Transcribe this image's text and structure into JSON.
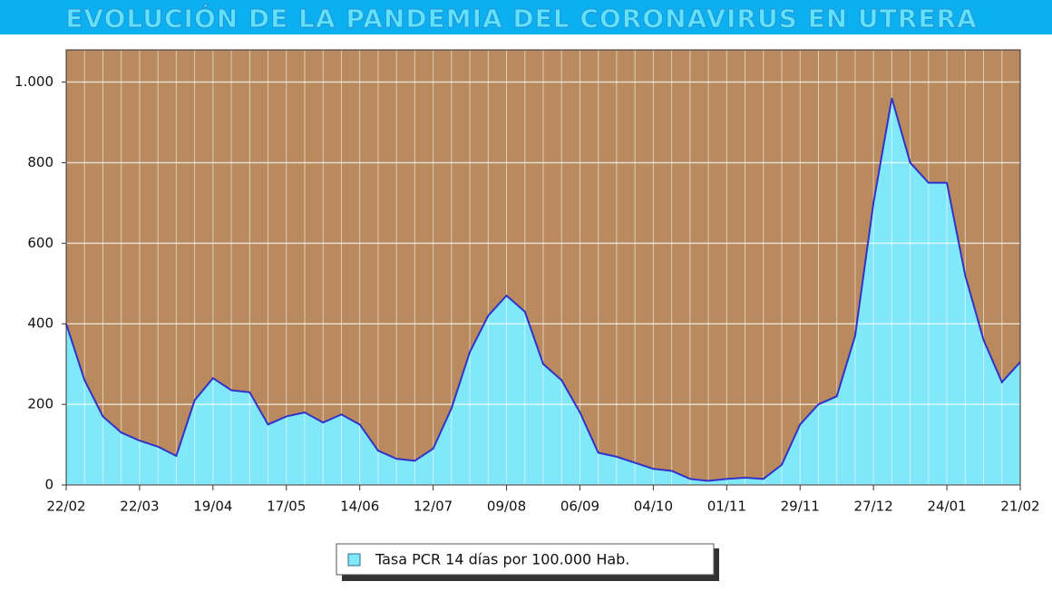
{
  "chart_data": {
    "type": "area",
    "title": "EVOLUCIÓN DE LA PANDEMIA DEL CORONAVIRUS EN UTRERA",
    "categories": [
      "22/02",
      null,
      null,
      null,
      "22/03",
      null,
      null,
      null,
      "19/04",
      null,
      null,
      null,
      "17/05",
      null,
      null,
      null,
      "14/06",
      null,
      null,
      null,
      "12/07",
      null,
      null,
      null,
      "09/08",
      null,
      null,
      null,
      "06/09",
      null,
      null,
      null,
      "04/10",
      null,
      null,
      null,
      "01/11",
      null,
      null,
      null,
      "29/11",
      null,
      null,
      null,
      "27/12",
      null,
      null,
      null,
      "24/01",
      null,
      null,
      null,
      "21/02"
    ],
    "series": [
      {
        "name": "Tasa PCR 14 días por 100.000 Hab.",
        "color": "#80e8f8",
        "line_color": "#3232c8",
        "values": [
          400,
          260,
          170,
          130,
          110,
          95,
          72,
          210,
          265,
          235,
          230,
          150,
          170,
          180,
          155,
          175,
          150,
          85,
          65,
          60,
          90,
          190,
          330,
          420,
          470,
          430,
          300,
          260,
          180,
          80,
          70,
          55,
          40,
          35,
          15,
          10,
          15,
          18,
          15,
          50,
          150,
          200,
          220,
          370,
          700,
          960,
          800,
          750,
          750,
          520,
          360,
          255,
          305
        ]
      }
    ],
    "ylim": [
      0,
      1080
    ],
    "yticks": [
      0,
      200,
      400,
      600,
      800,
      {
        "value": 1000,
        "label": "1.000"
      }
    ],
    "grid": true,
    "background": "#b98a5e"
  }
}
